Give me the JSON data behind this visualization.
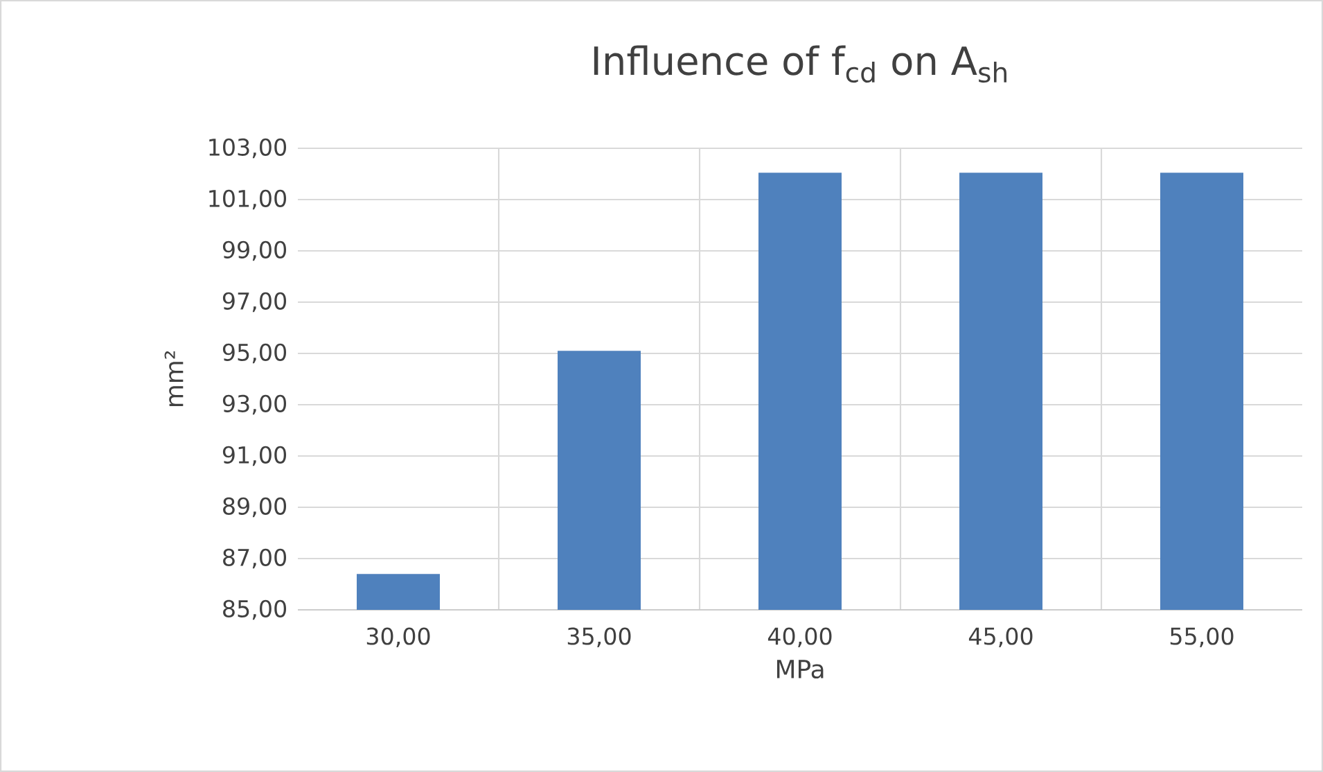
{
  "chart_data": {
    "type": "bar",
    "title": "Influence of f$_{cd}$ on A$_{sh}$",
    "xlabel": "MPa",
    "ylabel": "mm²",
    "categories": [
      "30,00",
      "35,00",
      "40,00",
      "45,00",
      "55,00"
    ],
    "values": [
      86.4,
      95.1,
      102.05,
      102.05,
      102.05
    ],
    "color": "#4f81bd",
    "ylim": [
      85,
      103
    ],
    "yticks": [
      {
        "value": 85,
        "label": "85,00"
      },
      {
        "value": 87,
        "label": "87,00"
      },
      {
        "value": 89,
        "label": "89,00"
      },
      {
        "value": 91,
        "label": "91,00"
      },
      {
        "value": 93,
        "label": "93,00"
      },
      {
        "value": 95,
        "label": "95,00"
      },
      {
        "value": 97,
        "label": "97,00"
      },
      {
        "value": 99,
        "label": "99,00"
      },
      {
        "value": 101,
        "label": "101,00"
      },
      {
        "value": 103,
        "label": "103,00"
      }
    ],
    "grid": true
  }
}
